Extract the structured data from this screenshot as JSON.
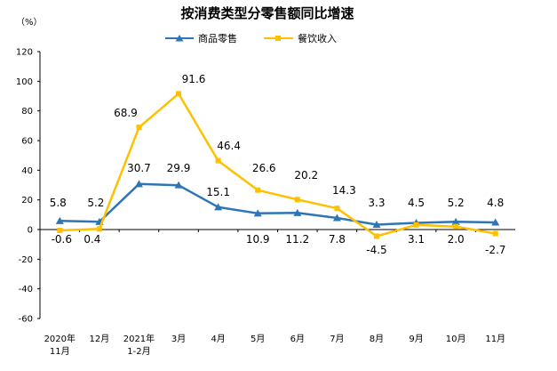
{
  "chart_data": {
    "type": "line",
    "title": "按消费类型分零售额同比增速",
    "unit": "（%）",
    "categories": [
      [
        "2020年",
        "11月"
      ],
      [
        "12月"
      ],
      [
        "2021年",
        "1-2月"
      ],
      [
        "3月"
      ],
      [
        "4月"
      ],
      [
        "5月"
      ],
      [
        "6月"
      ],
      [
        "7月"
      ],
      [
        "8月"
      ],
      [
        "9月"
      ],
      [
        "10月"
      ],
      [
        "11月"
      ]
    ],
    "ylim": [
      -60,
      120
    ],
    "yticks": [
      120,
      100,
      80,
      60,
      40,
      20,
      0,
      -20,
      -40,
      -60
    ],
    "grid": false,
    "legend": "top-center",
    "series": [
      {
        "name": "商品零售",
        "color": "#2e75b6",
        "marker": "triangle",
        "values": [
          5.8,
          5.2,
          30.7,
          29.9,
          15.1,
          10.9,
          11.2,
          7.8,
          3.3,
          4.5,
          5.2,
          4.8
        ],
        "labels": [
          "5.8",
          "5.2",
          "30.7",
          "29.9",
          "15.1",
          "10.9",
          "11.2",
          "7.8",
          "3.3",
          "4.5",
          "5.2",
          "4.8"
        ]
      },
      {
        "name": "餐饮收入",
        "color": "#ffc000",
        "marker": "square",
        "values": [
          -0.6,
          0.4,
          68.9,
          91.6,
          46.4,
          26.6,
          20.2,
          14.3,
          -4.5,
          3.1,
          2.0,
          -2.7
        ],
        "labels": [
          "-0.6",
          "0.4",
          "68.9",
          "91.6",
          "46.4",
          "26.6",
          "20.2",
          "14.3",
          "-4.5",
          "3.1",
          "2.0",
          "-2.7"
        ]
      }
    ]
  }
}
